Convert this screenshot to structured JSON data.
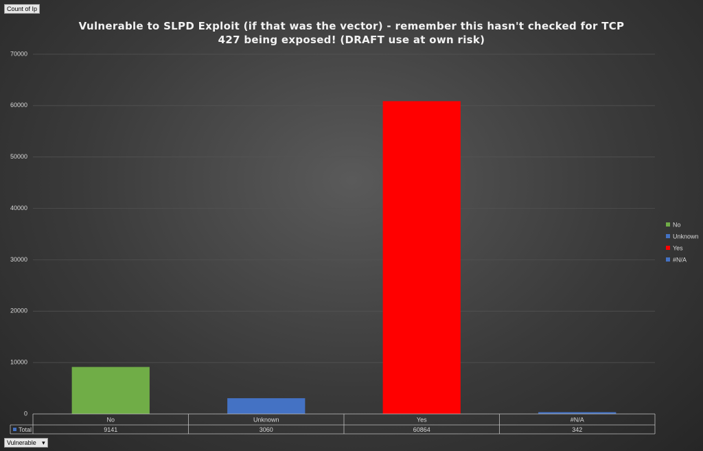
{
  "chart_data": {
    "type": "bar",
    "title": "Vulnerable to SLPD Exploit (if that was the vector) - remember this hasn't checked for TCP 427 being exposed! (DRAFT use at own risk)",
    "value_field": "Count of Ip",
    "axis_field": "Vulnerable",
    "series_name": "Total",
    "categories": [
      "No",
      "Unknown",
      "Yes",
      "#N/A"
    ],
    "values": [
      9141,
      3060,
      60864,
      342
    ],
    "colors": [
      "#70ad47",
      "#4472c4",
      "#ff0000",
      "#4472c4"
    ],
    "ylim": [
      0,
      70000
    ],
    "yticks": [
      0,
      10000,
      20000,
      30000,
      40000,
      50000,
      60000,
      70000
    ],
    "grid": true,
    "legend": "right",
    "data_table": true
  }
}
